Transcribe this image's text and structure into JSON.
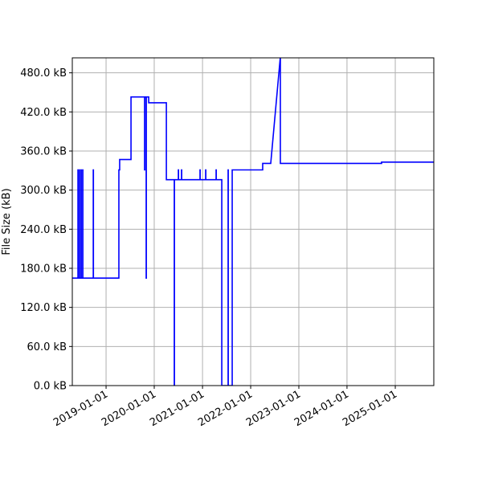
{
  "chart_data": {
    "type": "line",
    "title": "",
    "xlabel": "",
    "ylabel": "File Size (kB)",
    "xlim": [
      "2018-04-20",
      "2025-10-20"
    ],
    "ylim": [
      0,
      503
    ],
    "grid": true,
    "line_color": "#0000ff",
    "x_ticks": [
      {
        "value": "2019-01-01",
        "label": "2019-01-01"
      },
      {
        "value": "2020-01-01",
        "label": "2020-01-01"
      },
      {
        "value": "2021-01-01",
        "label": "2021-01-01"
      },
      {
        "value": "2022-01-01",
        "label": "2022-01-01"
      },
      {
        "value": "2023-01-01",
        "label": "2023-01-01"
      },
      {
        "value": "2024-01-01",
        "label": "2024-01-01"
      },
      {
        "value": "2025-01-01",
        "label": "2025-01-01"
      }
    ],
    "y_ticks": [
      {
        "value": 0,
        "label": "0.0 kB"
      },
      {
        "value": 60,
        "label": "60.0 kB"
      },
      {
        "value": 120,
        "label": "120.0 kB"
      },
      {
        "value": 180,
        "label": "180.0 kB"
      },
      {
        "value": 240,
        "label": "240.0 kB"
      },
      {
        "value": 300,
        "label": "300.0 kB"
      },
      {
        "value": 360,
        "label": "360.0 kB"
      },
      {
        "value": 420,
        "label": "420.0 kB"
      },
      {
        "value": 480,
        "label": "480.0 kB"
      }
    ],
    "series": [
      {
        "points": [
          [
            "2018-04-20",
            165
          ],
          [
            "2018-06-02",
            165
          ],
          [
            "2018-06-02",
            331
          ],
          [
            "2018-06-03",
            331
          ],
          [
            "2018-06-03",
            165
          ],
          [
            "2018-06-14",
            165
          ],
          [
            "2018-06-14",
            331
          ],
          [
            "2018-06-15",
            331
          ],
          [
            "2018-06-15",
            165
          ],
          [
            "2018-06-26",
            165
          ],
          [
            "2018-06-26",
            331
          ],
          [
            "2018-06-27",
            331
          ],
          [
            "2018-06-27",
            165
          ],
          [
            "2018-07-08",
            165
          ],
          [
            "2018-07-08",
            331
          ],
          [
            "2018-07-09",
            331
          ],
          [
            "2018-07-09",
            165
          ],
          [
            "2018-09-26",
            165
          ],
          [
            "2018-09-26",
            331
          ],
          [
            "2018-09-27",
            331
          ],
          [
            "2018-09-27",
            165
          ],
          [
            "2019-04-08",
            165
          ],
          [
            "2019-04-08",
            331
          ],
          [
            "2019-04-14",
            331
          ],
          [
            "2019-04-14",
            347
          ],
          [
            "2019-07-09",
            347
          ],
          [
            "2019-07-09",
            443
          ],
          [
            "2019-10-20",
            443
          ],
          [
            "2019-10-20",
            331
          ],
          [
            "2019-10-21",
            331
          ],
          [
            "2019-10-21",
            443
          ],
          [
            "2019-11-01",
            443
          ],
          [
            "2019-11-01",
            165
          ],
          [
            "2019-11-02",
            165
          ],
          [
            "2019-11-02",
            443
          ],
          [
            "2019-11-20",
            443
          ],
          [
            "2019-11-20",
            434
          ],
          [
            "2020-04-02",
            434
          ],
          [
            "2020-04-02",
            316
          ],
          [
            "2020-06-01",
            316
          ],
          [
            "2020-06-01",
            0
          ],
          [
            "2020-06-02",
            0
          ],
          [
            "2020-06-02",
            316
          ],
          [
            "2020-07-02",
            316
          ],
          [
            "2020-07-02",
            331
          ],
          [
            "2020-07-03",
            331
          ],
          [
            "2020-07-03",
            316
          ],
          [
            "2020-07-26",
            316
          ],
          [
            "2020-07-26",
            331
          ],
          [
            "2020-07-27",
            331
          ],
          [
            "2020-07-27",
            316
          ],
          [
            "2020-12-13",
            316
          ],
          [
            "2020-12-13",
            331
          ],
          [
            "2020-12-14",
            331
          ],
          [
            "2020-12-14",
            316
          ],
          [
            "2021-01-25",
            316
          ],
          [
            "2021-01-25",
            331
          ],
          [
            "2021-01-26",
            331
          ],
          [
            "2021-01-26",
            316
          ],
          [
            "2021-04-14",
            316
          ],
          [
            "2021-04-14",
            331
          ],
          [
            "2021-04-15",
            331
          ],
          [
            "2021-04-15",
            316
          ],
          [
            "2021-05-27",
            316
          ],
          [
            "2021-05-27",
            0
          ],
          [
            "2021-07-14",
            0
          ],
          [
            "2021-07-14",
            331
          ],
          [
            "2021-07-15",
            331
          ],
          [
            "2021-07-15",
            0
          ],
          [
            "2021-08-14",
            0
          ],
          [
            "2021-08-14",
            331
          ],
          [
            "2022-04-02",
            331
          ],
          [
            "2022-04-02",
            341
          ],
          [
            "2022-06-02",
            341
          ],
          [
            "2022-08-14",
            505
          ],
          [
            "2022-08-14",
            341
          ],
          [
            "2024-09-19",
            341
          ],
          [
            "2024-09-19",
            343
          ],
          [
            "2025-10-20",
            343
          ]
        ]
      }
    ]
  }
}
